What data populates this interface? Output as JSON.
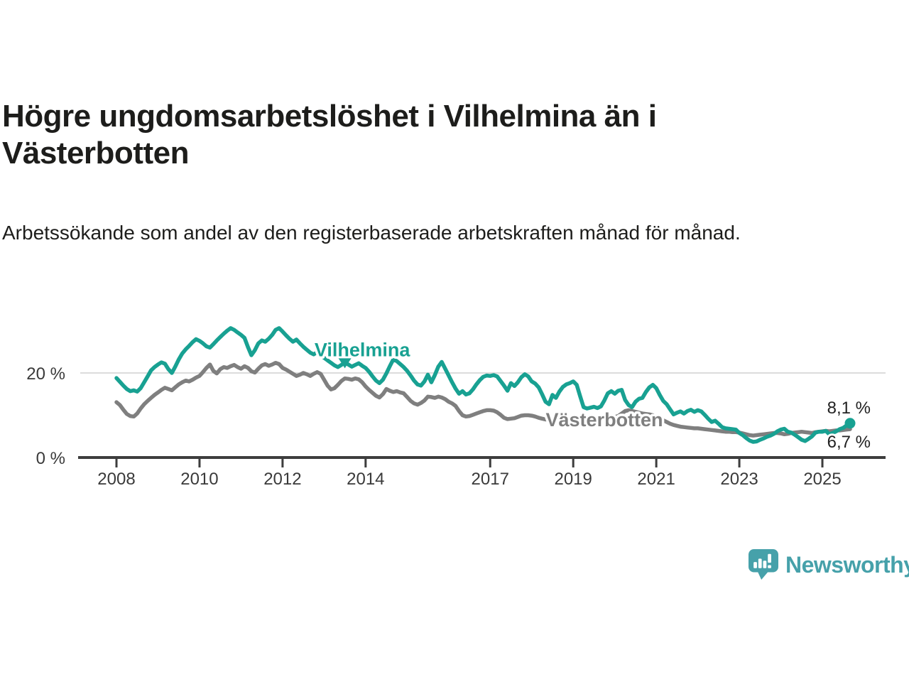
{
  "title": "Högre ungdomsarbetslöshet i Vilhelmina än i Västerbotten",
  "subtitle": "Arbetssökande som andel av den registerbaserade arbetskraften månad för månad.",
  "branding": {
    "logo_text": "Newsworthy",
    "logo_icon": "bar-chart-speech-bubble-icon",
    "brand_color": "#46a1aa"
  },
  "chart_data": {
    "type": "line",
    "unit": "%",
    "grid": "horizontal-gridline-at-20-only",
    "legend": "inline-series-labels",
    "x_axis": {
      "start_year": 2008,
      "end_label_period": "2025-09",
      "frequency": "monthly",
      "tick_years": [
        2008,
        2010,
        2012,
        2014,
        2017,
        2019,
        2021,
        2023,
        2025
      ]
    },
    "y_axis": {
      "range": [
        0,
        31
      ],
      "ticks": [
        {
          "value": 0,
          "label": "0 %"
        },
        {
          "value": 20,
          "label": "20 %"
        }
      ]
    },
    "series": [
      {
        "name": "Västerbotten",
        "color": "#7f7f7f",
        "label_anchor": {
          "year": 2019.75,
          "value": 8.9
        },
        "end_label": "6,7 %",
        "last_value": 6.7,
        "end_dot": false,
        "values": [
          13.1,
          12.4,
          11.3,
          10.3,
          9.8,
          9.7,
          10.4,
          11.6,
          12.6,
          13.4,
          14.1,
          14.8,
          15.4,
          16.0,
          16.5,
          16.2,
          15.9,
          16.6,
          17.3,
          17.8,
          18.2,
          18.0,
          18.4,
          18.9,
          19.3,
          20.2,
          21.2,
          22.0,
          20.5,
          19.9,
          20.9,
          21.4,
          21.2,
          21.6,
          21.9,
          21.4,
          21.0,
          21.6,
          21.2,
          20.4,
          20.1,
          21.0,
          21.8,
          22.1,
          21.7,
          22.0,
          22.4,
          22.1,
          21.2,
          20.8,
          20.3,
          19.8,
          19.3,
          19.6,
          20.0,
          19.7,
          19.3,
          19.8,
          20.2,
          19.8,
          18.4,
          17.0,
          16.1,
          16.4,
          17.2,
          18.1,
          18.7,
          18.6,
          18.4,
          18.7,
          18.5,
          17.8,
          16.8,
          16.0,
          15.3,
          14.6,
          14.2,
          15.0,
          16.2,
          15.8,
          15.5,
          15.7,
          15.4,
          15.2,
          14.3,
          13.4,
          12.8,
          12.5,
          12.9,
          13.5,
          14.4,
          14.3,
          14.1,
          14.4,
          14.2,
          13.8,
          13.2,
          12.8,
          12.2,
          11.0,
          10.0,
          9.7,
          9.8,
          10.1,
          10.4,
          10.7,
          11.0,
          11.2,
          11.2,
          11.1,
          10.7,
          10.1,
          9.4,
          9.1,
          9.2,
          9.3,
          9.6,
          9.9,
          10.0,
          10.0,
          9.9,
          9.7,
          9.4,
          9.2,
          9.0,
          8.9,
          9.1,
          9.2,
          9.3,
          9.4,
          9.5,
          9.4,
          9.3,
          9.1,
          8.9,
          8.7,
          8.6,
          8.7,
          8.9,
          9.0,
          9.1,
          9.2,
          9.3,
          9.4,
          9.6,
          9.8,
          10.4,
          11.0,
          11.2,
          11.0,
          10.8,
          10.6,
          10.4,
          10.3,
          10.2,
          10.0,
          9.6,
          9.2,
          8.8,
          8.4,
          8.0,
          7.7,
          7.5,
          7.3,
          7.2,
          7.1,
          7.0,
          6.9,
          6.9,
          6.8,
          6.7,
          6.6,
          6.5,
          6.4,
          6.3,
          6.2,
          6.1,
          6.1,
          6.0,
          6.0,
          5.9,
          5.7,
          5.5,
          5.3,
          5.2,
          5.3,
          5.4,
          5.5,
          5.6,
          5.7,
          5.8,
          5.8,
          5.7,
          5.5,
          5.6,
          5.8,
          5.9,
          6.0,
          6.1,
          6.0,
          5.9,
          5.8,
          6.0,
          6.1,
          6.2,
          6.3,
          6.2,
          6.3,
          6.4,
          6.4,
          6.5,
          6.6,
          6.7
        ]
      },
      {
        "name": "Vilhelmina",
        "color": "#18a192",
        "label_anchor": {
          "year": 2013.92,
          "value": 25.5
        },
        "marker": {
          "year": 2013.5,
          "value": 22.3,
          "shape": "triangle-down"
        },
        "end_label": "8,1 %",
        "last_value": 8.1,
        "end_dot": true,
        "values": [
          18.8,
          17.9,
          17.0,
          16.2,
          15.7,
          15.9,
          15.6,
          16.4,
          17.8,
          19.2,
          20.6,
          21.4,
          22.0,
          22.5,
          22.2,
          20.9,
          20.0,
          21.5,
          23.2,
          24.6,
          25.6,
          26.4,
          27.3,
          28.0,
          27.6,
          27.0,
          26.3,
          26.0,
          26.8,
          27.7,
          28.5,
          29.3,
          30.0,
          30.6,
          30.2,
          29.6,
          29.0,
          28.3,
          26.1,
          24.2,
          25.4,
          27.0,
          27.7,
          27.4,
          28.1,
          29.0,
          30.2,
          30.6,
          29.8,
          28.9,
          28.1,
          27.4,
          27.9,
          27.0,
          26.2,
          25.5,
          24.8,
          24.4,
          24.9,
          24.2,
          23.6,
          23.0,
          22.4,
          21.8,
          21.4,
          21.9,
          22.5,
          22.0,
          21.5,
          21.9,
          22.3,
          21.7,
          21.2,
          20.3,
          19.2,
          18.2,
          17.6,
          18.4,
          19.9,
          21.6,
          23.2,
          22.8,
          22.1,
          21.4,
          20.5,
          19.4,
          18.2,
          17.3,
          17.0,
          18.0,
          19.6,
          17.8,
          19.5,
          21.5,
          22.6,
          21.0,
          19.4,
          17.8,
          16.3,
          15.1,
          15.7,
          14.9,
          15.2,
          16.1,
          17.3,
          18.3,
          19.1,
          19.4,
          19.3,
          19.5,
          19.2,
          18.1,
          17.0,
          15.8,
          17.6,
          16.9,
          17.8,
          19.0,
          19.7,
          19.2,
          18.0,
          17.5,
          16.6,
          15.0,
          13.2,
          12.6,
          14.8,
          14.1,
          15.6,
          16.7,
          17.3,
          17.6,
          18.0,
          17.2,
          14.5,
          11.9,
          11.6,
          11.8,
          12.0,
          11.7,
          12.1,
          13.5,
          15.2,
          15.7,
          15.1,
          15.8,
          16.0,
          13.6,
          12.4,
          11.9,
          13.2,
          13.9,
          14.1,
          15.5,
          16.6,
          17.2,
          16.4,
          14.8,
          13.4,
          12.6,
          11.4,
          10.2,
          10.6,
          10.9,
          10.4,
          11.0,
          11.3,
          10.8,
          11.2,
          10.9,
          10.1,
          9.2,
          8.4,
          8.7,
          8.0,
          7.2,
          6.9,
          6.8,
          6.7,
          6.6,
          5.8,
          5.3,
          4.6,
          4.0,
          3.7,
          3.8,
          4.2,
          4.5,
          4.9,
          5.2,
          5.6,
          6.2,
          6.6,
          6.8,
          6.1,
          5.9,
          5.4,
          4.8,
          4.2,
          3.9,
          4.4,
          5.0,
          5.9,
          6.1,
          6.1,
          6.3,
          5.5,
          5.8,
          6.2,
          6.7,
          7.0,
          7.6,
          8.1
        ]
      }
    ]
  }
}
